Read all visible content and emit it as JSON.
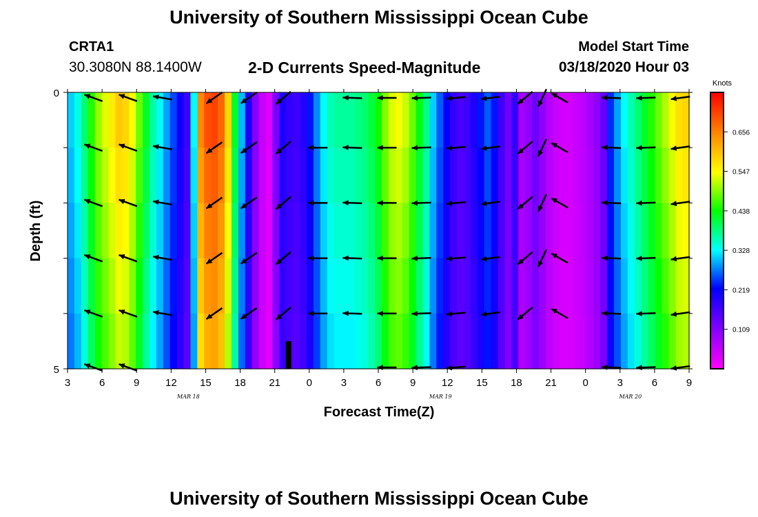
{
  "header": {
    "title": "University of Southern Mississippi Ocean Cube",
    "station_id": "CRTA1",
    "station_coords": "30.3080N 88.1400W",
    "model_start_label": "Model Start Time",
    "model_start_value": "03/18/2020 Hour 03"
  },
  "footer": {
    "title": "University of Southern Mississippi Ocean Cube"
  },
  "chart_data": {
    "type": "heatmap",
    "title": "2-D Currents Speed-Magnitude",
    "xlabel": "Forecast Time(Z)",
    "ylabel": "Depth (ft)",
    "ylim": [
      0,
      5
    ],
    "y_ticks": [
      "0",
      "5"
    ],
    "x_ticks": [
      "3",
      "6",
      "9",
      "12",
      "15",
      "18",
      "21",
      "0",
      "3",
      "6",
      "9",
      "12",
      "15",
      "18",
      "21",
      "0",
      "3",
      "6",
      "9"
    ],
    "date_labels": [
      {
        "text": "MAR 18",
        "tick_index": 3.5
      },
      {
        "text": "MAR 19",
        "tick_index": 10.8
      },
      {
        "text": "MAR 20",
        "tick_index": 16.3
      }
    ],
    "colorbar": {
      "unit": "Knots",
      "ticks": [
        "0.109",
        "0.219",
        "0.328",
        "0.438",
        "0.547",
        "0.656"
      ],
      "range": [
        0,
        0.765
      ]
    },
    "speed_columns": [
      0.31,
      0.34,
      0.39,
      0.45,
      0.5,
      0.53,
      0.56,
      0.59,
      0.58,
      0.54,
      0.48,
      0.42,
      0.37,
      0.33,
      0.29,
      0.25,
      0.21,
      0.17,
      0.33,
      0.65,
      0.7,
      0.71,
      0.68,
      0.58,
      0.42,
      0.3,
      0.2,
      0.11,
      0.05,
      0.03,
      0.12,
      0.2,
      0.18,
      0.17,
      0.19,
      0.23,
      0.28,
      0.33,
      0.36,
      0.37,
      0.37,
      0.37,
      0.38,
      0.39,
      0.41,
      0.44,
      0.49,
      0.53,
      0.54,
      0.52,
      0.48,
      0.43,
      0.38,
      0.31,
      0.26,
      0.22,
      0.18,
      0.16,
      0.17,
      0.2,
      0.23,
      0.26,
      0.23,
      0.17,
      0.13,
      0.18,
      0.08,
      0.1,
      0.13,
      0.1,
      0.07,
      0.05,
      0.04,
      0.04,
      0.05,
      0.06,
      0.08,
      0.1,
      0.14,
      0.24,
      0.29,
      0.33,
      0.36,
      0.39,
      0.42,
      0.45,
      0.48,
      0.51,
      0.54,
      0.57,
      0.58
    ],
    "vectors": [
      {
        "col": 1,
        "angle": -160
      },
      {
        "col": 3,
        "angle": -160
      },
      {
        "col": 5,
        "angle": -170
      },
      {
        "col": 8,
        "angle": 145
      },
      {
        "col": 10,
        "angle": 145
      },
      {
        "col": 12,
        "angle": 140
      },
      {
        "col": 14,
        "angle": 180
      },
      {
        "col": 16,
        "angle": 182
      },
      {
        "col": 18,
        "angle": 180
      },
      {
        "col": 20,
        "angle": 178
      },
      {
        "col": 22,
        "angle": 175
      },
      {
        "col": 24,
        "angle": 172
      },
      {
        "col": 26,
        "angle": 140
      },
      {
        "col": 27,
        "angle": 115
      },
      {
        "col": 28,
        "angle": -150
      },
      {
        "col": 31,
        "angle": 182
      },
      {
        "col": 33,
        "angle": 178
      },
      {
        "col": 35,
        "angle": 172
      }
    ],
    "vector_rows": [
      0,
      1,
      2,
      3,
      4
    ],
    "surface_vectors_cols": [
      1,
      3,
      5,
      8,
      10,
      12,
      16,
      18,
      20,
      22,
      24,
      26,
      27,
      28,
      31,
      33,
      35
    ],
    "bottom_vectors_cols": [
      1,
      3,
      18,
      20,
      22,
      31,
      33,
      35
    ],
    "gap_marker": {
      "tick_index": 6.4,
      "depth_from": 4.5,
      "depth_to": 5
    }
  }
}
